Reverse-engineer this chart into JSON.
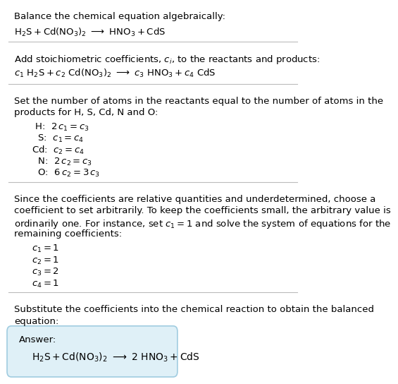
{
  "bg_color": "#ffffff",
  "answer_box_color": "#dff0f7",
  "answer_box_edge": "#a0cce0",
  "text_color": "#000000",
  "title1": "Balance the chemical equation algebraically:",
  "eq1": "$\\mathrm{H_2S + Cd(NO_3)_2 \\ \\longrightarrow \\ HNO_3 + CdS}$",
  "title2": "Add stoichiometric coefficients, $c_i$, to the reactants and products:",
  "eq2": "$c_1 \\ \\mathrm{H_2S} + c_2 \\ \\mathrm{Cd(NO_3)_2} \\ \\longrightarrow \\ c_3 \\ \\mathrm{HNO_3} + c_4 \\ \\mathrm{CdS}$",
  "title3a": "Set the number of atoms in the reactants equal to the number of atoms in the",
  "title3b": "products for H, S, Cd, N and O:",
  "equations": [
    " H:  $2\\,c_1 = c_3$",
    "  S:  $c_1 = c_4$",
    "Cd:  $c_2 = c_4$",
    "  N:  $2\\,c_2 = c_3$",
    "  O:  $6\\,c_2 = 3\\,c_3$"
  ],
  "title4a": "Since the coefficients are relative quantities and underdetermined, choose a",
  "title4b": "coefficient to set arbitrarily. To keep the coefficients small, the arbitrary value is",
  "title4c": "ordinarily one. For instance, set $c_1 = 1$ and solve the system of equations for the",
  "title4d": "remaining coefficients:",
  "coeffs": [
    "$c_1 = 1$",
    "$c_2 = 1$",
    "$c_3 = 2$",
    "$c_4 = 1$"
  ],
  "title5a": "Substitute the coefficients into the chemical reaction to obtain the balanced",
  "title5b": "equation:",
  "answer_label": "Answer:",
  "answer_eq": "$\\mathrm{H_2S + Cd(NO_3)_2 \\ \\longrightarrow \\ 2\\ HNO_3 + CdS}$"
}
